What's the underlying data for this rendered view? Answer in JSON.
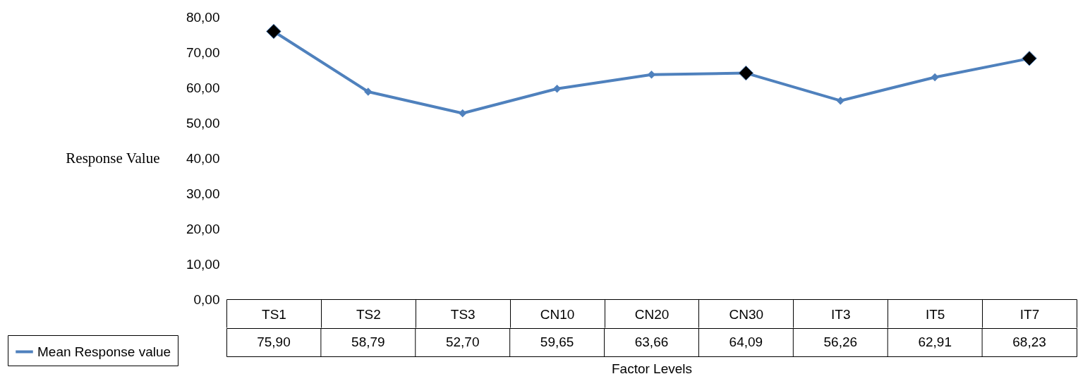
{
  "chart_data": {
    "type": "line",
    "xlabel": "Factor Levels",
    "ylabel": "Response Value",
    "categories": [
      "TS1",
      "TS2",
      "TS3",
      "CN10",
      "CN20",
      "CN30",
      "IT3",
      "IT5",
      "IT7"
    ],
    "series": [
      {
        "name": "Mean Response value",
        "color": "#4f81bd",
        "marker": "diamond",
        "values": [
          75.9,
          58.79,
          52.7,
          59.65,
          63.66,
          64.09,
          56.26,
          62.91,
          68.23
        ],
        "value_labels": [
          "75,90",
          "58,79",
          "52,70",
          "59,65",
          "63,66",
          "64,09",
          "56,26",
          "62,91",
          "68,23"
        ]
      },
      {
        "color": "#000000",
        "type": "scatter",
        "marker": "diamond",
        "values": [
          75.9,
          null,
          null,
          null,
          null,
          64.09,
          null,
          null,
          68.23
        ]
      }
    ],
    "ylim": [
      0,
      80
    ],
    "yticks": [
      {
        "value": 0,
        "label": "0,00"
      },
      {
        "value": 10,
        "label": "10,00"
      },
      {
        "value": 20,
        "label": "20,00"
      },
      {
        "value": 30,
        "label": "30,00"
      },
      {
        "value": 40,
        "label": "40,00"
      },
      {
        "value": 50,
        "label": "50,00"
      },
      {
        "value": 60,
        "label": "60,00"
      },
      {
        "value": 70,
        "label": "70,00"
      },
      {
        "value": 80,
        "label": "80,00"
      }
    ],
    "legend": "bottom left",
    "line_style": "solid"
  }
}
